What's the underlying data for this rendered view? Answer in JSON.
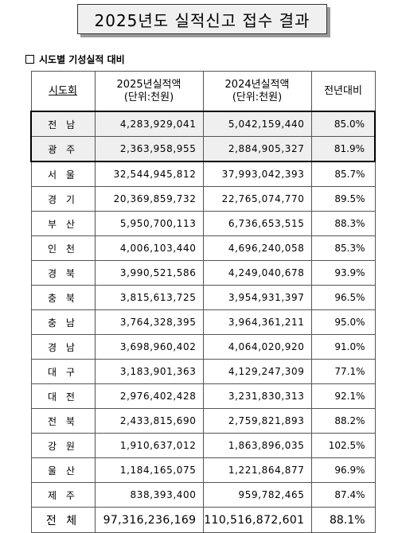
{
  "title": "2025년도 실적신고 접수 결과",
  "section_title": "시도별 기성실적 대비",
  "header": {
    "region": "시도회",
    "y2025_line1": "2025년실적액",
    "y2025_line2": "(단위:천원)",
    "y2024_line1": "2024년실적액",
    "y2024_line2": "(단위:천원)",
    "ratio": "전년대비"
  },
  "rows": [
    {
      "region": "전 남",
      "v2025": "4,283,929,041",
      "v2024": "5,042,159,440",
      "ratio": "85.0%"
    },
    {
      "region": "광 주",
      "v2025": "2,363,958,955",
      "v2024": "2,884,905,327",
      "ratio": "81.9%"
    },
    {
      "region": "서 울",
      "v2025": "32,544,945,812",
      "v2024": "37,993,042,393",
      "ratio": "85.7%"
    },
    {
      "region": "경 기",
      "v2025": "20,369,859,732",
      "v2024": "22,765,074,770",
      "ratio": "89.5%"
    },
    {
      "region": "부 산",
      "v2025": "5,950,700,113",
      "v2024": "6,736,653,515",
      "ratio": "88.3%"
    },
    {
      "region": "인 천",
      "v2025": "4,006,103,440",
      "v2024": "4,696,240,058",
      "ratio": "85.3%"
    },
    {
      "region": "경 북",
      "v2025": "3,990,521,586",
      "v2024": "4,249,040,678",
      "ratio": "93.9%"
    },
    {
      "region": "충 북",
      "v2025": "3,815,613,725",
      "v2024": "3,954,931,397",
      "ratio": "96.5%"
    },
    {
      "region": "충 남",
      "v2025": "3,764,328,395",
      "v2024": "3,964,361,211",
      "ratio": "95.0%"
    },
    {
      "region": "경 남",
      "v2025": "3,698,960,402",
      "v2024": "4,064,020,920",
      "ratio": "91.0%"
    },
    {
      "region": "대 구",
      "v2025": "3,183,901,363",
      "v2024": "4,129,247,309",
      "ratio": "77.1%"
    },
    {
      "region": "대 전",
      "v2025": "2,976,402,428",
      "v2024": "3,231,830,313",
      "ratio": "92.1%"
    },
    {
      "region": "전 북",
      "v2025": "2,433,815,690",
      "v2024": "2,759,821,893",
      "ratio": "88.2%"
    },
    {
      "region": "강 원",
      "v2025": "1,910,637,012",
      "v2024": "1,863,896,035",
      "ratio": "102.5%"
    },
    {
      "region": "울 산",
      "v2025": "1,184,165,075",
      "v2024": "1,221,864,877",
      "ratio": "96.9%"
    },
    {
      "region": "제 주",
      "v2025": "838,393,400",
      "v2024": "959,782,465",
      "ratio": "87.4%"
    },
    {
      "region": "전 체",
      "v2025": "97,316,236,169",
      "v2024": "110,516,872,601",
      "ratio": "88.1%"
    }
  ]
}
